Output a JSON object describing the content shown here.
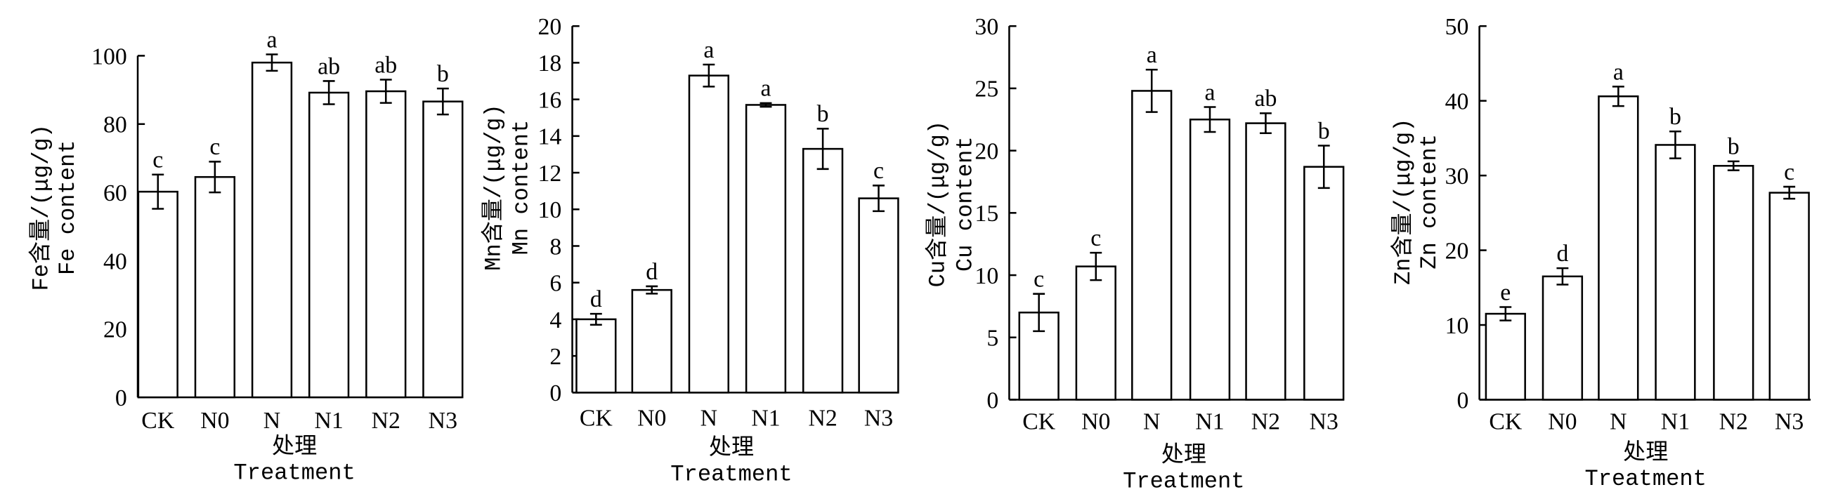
{
  "colors": {
    "bar_fill": "#ffffff",
    "line": "#000000"
  },
  "chart_data": [
    {
      "type": "bar",
      "categories": [
        "CK",
        "N0",
        "N",
        "N1",
        "N2",
        "N3"
      ],
      "values": [
        60.2,
        64.5,
        98.0,
        89.2,
        89.6,
        86.6
      ],
      "errors": [
        5.0,
        4.5,
        2.4,
        3.4,
        3.4,
        3.8
      ],
      "significance_letters": [
        "c",
        "c",
        "a",
        "ab",
        "ab",
        "b"
      ],
      "ylabel": [
        "Fe含量/(μg/g)",
        "Fe content"
      ],
      "xlabel": [
        "处理",
        "Treatment"
      ],
      "ylim": [
        0,
        100
      ],
      "yticks": [
        0,
        20,
        40,
        60,
        80,
        100
      ]
    },
    {
      "type": "bar",
      "categories": [
        "CK",
        "N0",
        "N",
        "N1",
        "N2",
        "N3"
      ],
      "values": [
        4.0,
        5.6,
        17.3,
        15.7,
        13.3,
        10.6
      ],
      "errors": [
        0.3,
        0.2,
        0.6,
        0.1,
        1.1,
        0.7
      ],
      "significance_letters": [
        "d",
        "d",
        "a",
        "a",
        "b",
        "c"
      ],
      "ylabel": [
        "Mn含量/(μg/g)",
        "Mn content"
      ],
      "xlabel": [
        "处理",
        "Treatment"
      ],
      "ylim": [
        0,
        20
      ],
      "yticks": [
        0,
        2,
        4,
        6,
        8,
        10,
        12,
        14,
        16,
        18,
        20
      ]
    },
    {
      "type": "bar",
      "categories": [
        "CK",
        "N0",
        "N",
        "N1",
        "N2",
        "N3"
      ],
      "values": [
        7.0,
        10.7,
        24.8,
        22.5,
        22.2,
        18.7
      ],
      "errors": [
        1.5,
        1.1,
        1.7,
        1.0,
        0.8,
        1.7
      ],
      "significance_letters": [
        "c",
        "c",
        "a",
        "a",
        "ab",
        "b"
      ],
      "ylabel": [
        "Cu含量/(μg/g)",
        "Cu content"
      ],
      "xlabel": [
        "处理",
        "Treatment"
      ],
      "ylim": [
        0,
        30
      ],
      "yticks": [
        0,
        5,
        10,
        15,
        20,
        25,
        30
      ]
    },
    {
      "type": "bar",
      "categories": [
        "CK",
        "N0",
        "N",
        "N1",
        "N2",
        "N3"
      ],
      "values": [
        11.5,
        16.5,
        40.6,
        34.1,
        31.3,
        27.7
      ],
      "errors": [
        0.9,
        1.1,
        1.3,
        1.8,
        0.6,
        0.8
      ],
      "significance_letters": [
        "e",
        "d",
        "a",
        "b",
        "b",
        "c"
      ],
      "ylabel": [
        "Zn含量/(μg/g)",
        "Zn content"
      ],
      "xlabel": [
        "处理",
        "Treatment"
      ],
      "ylim": [
        0,
        50
      ],
      "yticks": [
        0,
        10,
        20,
        30,
        40,
        50
      ]
    }
  ]
}
